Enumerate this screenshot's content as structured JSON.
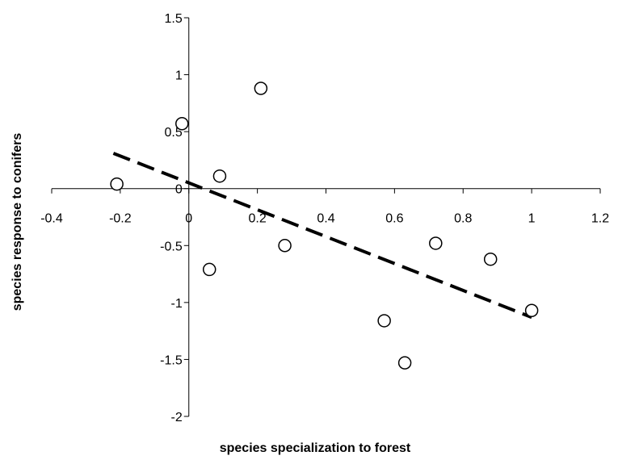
{
  "chart_data": {
    "type": "scatter",
    "xlabel": "species specialization to forest",
    "ylabel": "species response to conifers",
    "xlim": [
      -0.4,
      1.2
    ],
    "ylim": [
      -2,
      1.5
    ],
    "xticks": [
      -0.4,
      -0.2,
      0,
      0.2,
      0.4,
      0.6,
      0.8,
      1,
      1.2
    ],
    "xtick_labels": [
      "-0.4",
      "-0.2",
      "0",
      "0.2",
      "0.4",
      "0.6",
      "0.8",
      "1",
      "1.2"
    ],
    "yticks": [
      -2,
      -1.5,
      -1,
      -0.5,
      0,
      0.5,
      1,
      1.5
    ],
    "ytick_labels": [
      "-2",
      "-1.5",
      "-1",
      "-0.5",
      "0",
      "0.5",
      "1",
      "1.5"
    ],
    "grid": false,
    "legend": "none",
    "series": [
      {
        "marker": "open-circle",
        "points": [
          {
            "x": -0.21,
            "y": 0.04
          },
          {
            "x": -0.02,
            "y": 0.57
          },
          {
            "x": 0.06,
            "y": -0.71
          },
          {
            "x": 0.09,
            "y": 0.11
          },
          {
            "x": 0.21,
            "y": 0.88
          },
          {
            "x": 0.28,
            "y": -0.5
          },
          {
            "x": 0.57,
            "y": -1.16
          },
          {
            "x": 0.63,
            "y": -1.53
          },
          {
            "x": 0.72,
            "y": -0.48
          },
          {
            "x": 0.88,
            "y": -0.62
          },
          {
            "x": 1.0,
            "y": -1.07
          }
        ]
      }
    ],
    "trendline": {
      "style": "dashed",
      "x": [
        -0.22,
        1.0
      ],
      "y": [
        0.31,
        -1.13
      ]
    },
    "colors": {
      "marker_stroke": "#000000",
      "marker_fill": "#ffffff",
      "axis": "#000000",
      "trendline": "#000000"
    }
  }
}
